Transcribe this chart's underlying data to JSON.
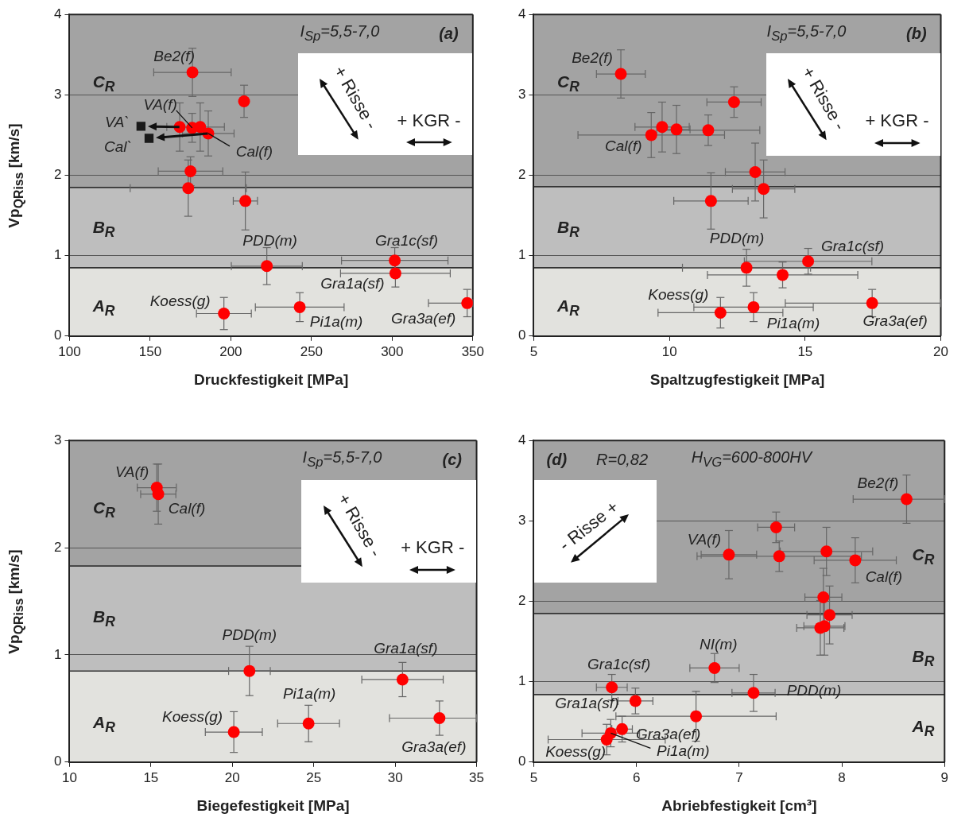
{
  "chart_data": [
    {
      "type": "scatter",
      "xlabel": "Druckfestigkeit [MPa]",
      "ylabel": "Vp$_{QRiss}$ [km/s]",
      "xlim": [
        100,
        350
      ],
      "ylim": [
        0,
        4
      ],
      "xticks": [
        100,
        150,
        200,
        250,
        300,
        350
      ],
      "yticks": [
        0,
        1,
        2,
        3,
        4
      ],
      "grid": "y",
      "bands": [
        {
          "axis": "y",
          "from": 0,
          "to": 0.85,
          "label": "A$_{R}$",
          "color": "#e2e2de"
        },
        {
          "axis": "y",
          "from": 0.85,
          "to": 1.85,
          "label": "B$_{R}$",
          "color": "#bebebe"
        },
        {
          "axis": "y",
          "from": 1.85,
          "to": 4,
          "label": "C$_{R}$",
          "color": "#a3a3a3"
        }
      ],
      "annotations": [
        "I$_{Sp}$=5,5-7,0",
        "(a)",
        "+ Risse -",
        "+ KGR -",
        {
          "text": "Be2(f)",
          "x": 176.2,
          "y": 3.28
        },
        {
          "text": "VA(f)",
          "x": 176,
          "y": 2.59
        },
        {
          "text": "VA`",
          "x": 144.3,
          "y": 2.61
        },
        {
          "text": "Cal`",
          "x": 149.3,
          "y": 2.46
        },
        {
          "text": "Cal(f)",
          "x": 186,
          "y": 2.52
        },
        {
          "text": "PDD(m)",
          "x": 222.3,
          "y": 0.87
        },
        {
          "text": "Gra1c(sf)",
          "x": 301.6,
          "y": 0.94
        },
        {
          "text": "Gra1a(sf)",
          "x": 302,
          "y": 0.78
        },
        {
          "text": "Koess(g)",
          "x": 195.7,
          "y": 0.28
        },
        {
          "text": "Pi1a(m)",
          "x": 242.7,
          "y": 0.36
        },
        {
          "text": "Gra3a(ef)",
          "x": 346.5,
          "y": 0.41
        }
      ],
      "series": [
        {
          "color": "#ff0000",
          "marker": "circle",
          "x": [
            176.2,
            208.2,
            168.3,
            176,
            181,
            186,
            175,
            173.6,
            209,
            222.3,
            301.6,
            302,
            195.7,
            242.7,
            346.5
          ],
          "values": [
            3.28,
            2.92,
            2.6,
            2.59,
            2.6,
            2.52,
            2.05,
            1.84,
            1.68,
            0.87,
            0.94,
            0.78,
            0.28,
            0.36,
            0.41
          ],
          "errors": [
            0.3,
            0.2,
            0.3,
            0.18,
            0.3,
            0.28,
            0.18,
            0.35,
            0.36,
            0.23,
            0.16,
            0.17,
            0.2,
            0.18,
            0.17
          ],
          "xerrors": [
            24,
            null,
            8,
            null,
            15,
            16,
            20,
            36,
            7.5,
            22,
            33,
            34,
            17,
            27.5,
            [
              322.5,
              350
            ]
          ]
        },
        {
          "color": "#1a1a1a",
          "marker": "square",
          "x": [
            144.3,
            149.3
          ],
          "values": [
            2.61,
            2.46
          ]
        }
      ]
    },
    {
      "type": "scatter",
      "xlabel": "Spaltzugfestigkeit [MPa]",
      "xlim": [
        5,
        20
      ],
      "ylim": [
        0,
        4
      ],
      "xticks": [
        5,
        10,
        15,
        20
      ],
      "yticks": [
        0,
        1,
        2,
        3,
        4
      ],
      "grid": "y",
      "bands": [
        {
          "axis": "y",
          "from": 0,
          "to": 0.85,
          "label": "A$_{R}$",
          "color": "#e2e2de"
        },
        {
          "axis": "y",
          "from": 0.85,
          "to": 1.86,
          "label": "B$_{R}$",
          "color": "#bebebe"
        },
        {
          "axis": "y",
          "from": 1.86,
          "to": 4,
          "label": "C$_{R}$",
          "color": "#a3a3a3"
        }
      ],
      "annotations": [
        "I$_{Sp}$=5,5-7,0",
        "(b)",
        "+ Risse -",
        "+ KGR -",
        {
          "text": "Be2(f)",
          "x": 8.21,
          "y": 3.26
        },
        {
          "text": "Cal(f)",
          "x": 9.33,
          "y": 2.5
        },
        {
          "text": "PDD(m)",
          "x": 12.84,
          "y": 0.85
        },
        {
          "text": "Gra1c(sf)",
          "x": 15.11,
          "y": 0.93
        },
        {
          "text": "Koess(g)",
          "x": 11.88,
          "y": 0.29
        },
        {
          "text": "Pi1a(m)",
          "x": 13.1,
          "y": 0.36
        },
        {
          "text": "Gra3a(ef)",
          "x": 17.47,
          "y": 0.41
        }
      ],
      "series": [
        {
          "color": "#ff0000",
          "marker": "circle",
          "x": [
            8.21,
            12.38,
            9.73,
            10.26,
            11.43,
            9.33,
            13.16,
            13.47,
            11.53,
            15.11,
            12.84,
            14.17,
            11.88,
            13.1,
            17.47
          ],
          "values": [
            3.26,
            2.91,
            2.6,
            2.57,
            2.56,
            2.5,
            2.04,
            1.83,
            1.68,
            0.93,
            0.85,
            0.76,
            0.29,
            0.36,
            0.41
          ],
          "errors": [
            0.3,
            0.19,
            0.31,
            0.3,
            0.19,
            0.28,
            0.36,
            0.36,
            0.35,
            0.16,
            0.23,
            0.16,
            0.19,
            0.18,
            0.17
          ],
          "xerrors": [
            0.9,
            1.0,
            1.0,
            0.5,
            1.9,
            2.7,
            1.1,
            1.15,
            1.37,
            2.35,
            2.36,
            2.77,
            2.3,
            2.2,
            [
              14.27,
              20
            ]
          ]
        }
      ]
    },
    {
      "type": "scatter",
      "xlabel": "Biegefestigkeit [MPa]",
      "ylabel": "Vp$_{QRiss}$ [km/s]",
      "xlim": [
        10,
        35
      ],
      "ylim": [
        0,
        3
      ],
      "xticks": [
        10,
        15,
        20,
        25,
        30,
        35
      ],
      "yticks": [
        0,
        1,
        2,
        3
      ],
      "grid": "y",
      "bands": [
        {
          "axis": "y",
          "from": 0,
          "to": 0.85,
          "label": "A$_{R}$",
          "color": "#e2e2de"
        },
        {
          "axis": "y",
          "from": 0.85,
          "to": 1.83,
          "label": "B$_{R}$",
          "color": "#bebebe"
        },
        {
          "axis": "y",
          "from": 1.83,
          "to": 3,
          "label": "C$_{R}$",
          "color": "#a3a3a3"
        }
      ],
      "annotations": [
        "I$_{Sp}$=5,5-7,0",
        "(c)",
        "+ Risse -",
        "+ KGR -",
        {
          "text": "VA(f)",
          "x": 15.36,
          "y": 2.56
        },
        {
          "text": "Cal(f)",
          "x": 15.45,
          "y": 2.5
        },
        {
          "text": "PDD(m)",
          "x": 21.05,
          "y": 0.85
        },
        {
          "text": "Gra1a(sf)",
          "x": 30.45,
          "y": 0.77
        },
        {
          "text": "Pi1a(m)",
          "x": 24.68,
          "y": 0.36
        },
        {
          "text": "Koess(g)",
          "x": 20.09,
          "y": 0.28
        },
        {
          "text": "Gra3a(ef)",
          "x": 32.72,
          "y": 0.41
        }
      ],
      "series": [
        {
          "color": "#ff0000",
          "marker": "circle",
          "x": [
            15.36,
            15.45,
            21.05,
            30.45,
            20.09,
            24.68,
            32.72
          ],
          "values": [
            2.56,
            2.5,
            0.85,
            0.77,
            0.28,
            0.36,
            0.41
          ],
          "errors": [
            0.22,
            0.28,
            0.23,
            0.16,
            0.19,
            0.17,
            0.16
          ],
          "xerrors": [
            1.2,
            1.08,
            1.28,
            2.5,
            1.75,
            1.9,
            [
              29.65,
              35
            ]
          ]
        }
      ]
    },
    {
      "type": "scatter",
      "xlabel": "Abriebfestigkeit [cm³]",
      "xlim": [
        5,
        9
      ],
      "ylim": [
        0,
        4
      ],
      "xticks": [
        5,
        6,
        7,
        8,
        9
      ],
      "yticks": [
        0,
        1,
        2,
        3,
        4
      ],
      "grid": "y",
      "bands": [
        {
          "axis": "y",
          "from": 0,
          "to": 0.84,
          "label": "A$_{R}$",
          "color": "#e2e2de"
        },
        {
          "axis": "y",
          "from": 0.84,
          "to": 1.85,
          "label": "B$_{R}$",
          "color": "#bebebe"
        },
        {
          "axis": "y",
          "from": 1.85,
          "to": 4,
          "label": "C$_{R}$",
          "color": "#a3a3a3"
        }
      ],
      "annotations": [
        "(d)",
        "R=0,82",
        "H$_{VG}$=600-800HV",
        "- Risse +",
        {
          "text": "Be2(f)",
          "x": 8.63,
          "y": 3.27
        },
        {
          "text": "VA(f)",
          "x": 6.9,
          "y": 2.58
        },
        {
          "text": "Cal(f)",
          "x": 8.13,
          "y": 2.51
        },
        {
          "text": "NI(m)",
          "x": 6.76,
          "y": 1.17
        },
        {
          "text": "Gra1c(sf)",
          "x": 5.76,
          "y": 0.93
        },
        {
          "text": "PDD(m)",
          "x": 7.14,
          "y": 0.86
        },
        {
          "text": "Gra1a(sf)",
          "x": 5.99,
          "y": 0.76
        },
        {
          "text": "Gra3a(ef)",
          "x": 5.86,
          "y": 0.41
        },
        {
          "text": "Pi1a(m)",
          "x": 5.75,
          "y": 0.36
        },
        {
          "text": "Koess(g)",
          "x": 5.71,
          "y": 0.28
        }
      ],
      "series": [
        {
          "color": "#ff0000",
          "marker": "circle",
          "x": [
            8.63,
            7.36,
            6.9,
            7.39,
            7.85,
            8.13,
            7.82,
            7.88,
            7.79,
            7.83,
            6.76,
            5.76,
            7.14,
            5.99,
            6.58,
            5.86,
            5.75,
            5.71
          ],
          "values": [
            3.27,
            2.92,
            2.58,
            2.56,
            2.62,
            2.51,
            2.05,
            1.83,
            1.67,
            1.69,
            1.17,
            0.93,
            0.86,
            0.76,
            0.57,
            0.41,
            0.36,
            0.28
          ],
          "errors": [
            0.3,
            0.19,
            0.3,
            0.19,
            0.3,
            0.28,
            0.36,
            0.36,
            0.34,
            0.36,
            0.18,
            0.16,
            0.23,
            0.16,
            0.31,
            0.16,
            0.17,
            0.19
          ],
          "xerrors": [
            [
              8.11,
              9
            ],
            0.18,
            0.27,
            0.8,
            0.45,
            0.4,
            0.18,
            0.22,
            0.23,
            0.2,
            0.24,
            0.15,
            0.21,
            0.17,
            0.78,
            0.1,
            0.28,
            0.57
          ]
        }
      ]
    }
  ]
}
